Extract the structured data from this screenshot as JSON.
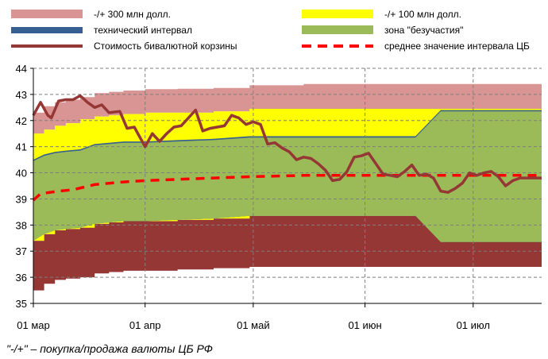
{
  "chart_data": {
    "type": "area",
    "title": "",
    "xlabel": "",
    "ylabel": "",
    "ylim": [
      35,
      44
    ],
    "xlim": [
      "2013-03-01",
      "2013-07-20"
    ],
    "y_ticks": [
      "35",
      "36",
      "37",
      "38",
      "39",
      "40",
      "41",
      "42",
      "43",
      "44"
    ],
    "x_ticks": [
      {
        "date": "2013-03-01",
        "label": "01 мар"
      },
      {
        "date": "2013-04-01",
        "label": "01 апр"
      },
      {
        "date": "2013-05-01",
        "label": "01 май"
      },
      {
        "date": "2013-06-01",
        "label": "01 июн"
      },
      {
        "date": "2013-07-01",
        "label": "01 июл"
      }
    ],
    "grid": "dashed",
    "legend_placement": "top",
    "legend": [
      {
        "key": "band300",
        "label": "-/+ 300 млн долл.",
        "kind": "box",
        "color_upper": "#d99594",
        "color_lower": "#953735"
      },
      {
        "key": "band100",
        "label": "-/+ 100 млн долл.",
        "kind": "box",
        "color": "#ffff00"
      },
      {
        "key": "tech",
        "label": "технический интервал",
        "kind": "thin",
        "color": "#376092"
      },
      {
        "key": "zone",
        "label": "зона \"безучастия\"",
        "kind": "box",
        "color": "#9bbb59"
      },
      {
        "key": "basket",
        "label": "Стоимость бивалютной корзины",
        "kind": "line",
        "color": "#953735"
      },
      {
        "key": "mid",
        "label": "среднее значение интервала ЦБ",
        "kind": "dash",
        "color": "#ff0000"
      }
    ],
    "series": [
      {
        "name": "-/+ 300 млн долл.",
        "kind": "band",
        "x": [
          "2013-03-01",
          "2013-03-04",
          "2013-03-07",
          "2013-03-10",
          "2013-03-14",
          "2013-03-18",
          "2013-03-22",
          "2013-03-26",
          "2013-04-01",
          "2013-04-10",
          "2013-04-20",
          "2013-04-30",
          "2013-05-15",
          "2013-06-01",
          "2013-06-15",
          "2013-06-22",
          "2013-07-20"
        ],
        "upper": [
          42.3,
          42.55,
          42.7,
          42.8,
          42.9,
          43.05,
          43.1,
          43.15,
          43.2,
          43.22,
          43.25,
          43.35,
          43.4,
          43.4,
          43.4,
          43.4,
          43.4
        ],
        "lower": [
          35.5,
          35.75,
          35.9,
          35.95,
          36.0,
          36.15,
          36.2,
          36.25,
          36.25,
          36.3,
          36.35,
          36.4,
          36.4,
          36.4,
          36.4,
          36.4,
          36.4
        ]
      },
      {
        "name": "-/+ 100 млн долл.",
        "kind": "band",
        "x": [
          "2013-03-01",
          "2013-03-04",
          "2013-03-07",
          "2013-03-10",
          "2013-03-14",
          "2013-03-18",
          "2013-03-22",
          "2013-03-26",
          "2013-04-01",
          "2013-04-10",
          "2013-04-20",
          "2013-04-30",
          "2013-05-15",
          "2013-06-01",
          "2013-06-15",
          "2013-06-22",
          "2013-07-20"
        ],
        "upper": [
          41.5,
          41.65,
          41.8,
          41.9,
          42.05,
          42.15,
          42.2,
          42.25,
          42.3,
          42.3,
          42.35,
          42.45,
          42.45,
          42.45,
          42.45,
          42.45,
          42.45
        ],
        "lower": [
          37.4,
          37.65,
          37.8,
          37.85,
          37.9,
          38.05,
          38.1,
          38.15,
          38.15,
          38.2,
          38.25,
          38.35,
          38.35,
          38.35,
          38.35,
          38.35,
          38.35
        ]
      },
      {
        "name": "технический интервал",
        "kind": "band",
        "x": [
          "2013-03-01",
          "2013-03-04",
          "2013-03-07",
          "2013-03-10",
          "2013-03-14",
          "2013-03-18",
          "2013-03-22",
          "2013-03-26",
          "2013-04-01",
          "2013-04-10",
          "2013-04-20",
          "2013-04-30",
          "2013-05-15",
          "2013-06-01",
          "2013-06-15",
          "2013-06-22",
          "2013-07-20"
        ],
        "upper": [
          40.5,
          40.7,
          40.8,
          40.85,
          40.9,
          41.1,
          41.15,
          41.2,
          41.2,
          41.25,
          41.3,
          41.4,
          41.4,
          41.4,
          41.4,
          42.4,
          42.4
        ],
        "lower": [
          37.4,
          37.65,
          37.8,
          37.85,
          37.9,
          38.05,
          38.1,
          38.15,
          38.15,
          38.2,
          38.25,
          38.35,
          38.35,
          38.35,
          38.35,
          37.35,
          37.35
        ]
      },
      {
        "name": "зона \"безучастия\"",
        "kind": "band",
        "x": [
          "2013-03-01",
          "2013-03-04",
          "2013-03-07",
          "2013-03-10",
          "2013-03-14",
          "2013-03-18",
          "2013-03-22",
          "2013-03-26",
          "2013-04-01",
          "2013-04-10",
          "2013-04-20",
          "2013-04-30",
          "2013-05-15",
          "2013-06-01",
          "2013-06-15",
          "2013-06-22",
          "2013-07-20"
        ],
        "upper": [
          40.45,
          40.65,
          40.75,
          40.8,
          40.85,
          41.05,
          41.1,
          41.15,
          41.15,
          41.2,
          41.25,
          41.35,
          41.35,
          41.35,
          41.35,
          42.35,
          42.35
        ],
        "lower": [
          37.4,
          37.65,
          37.8,
          37.85,
          37.9,
          38.05,
          38.1,
          38.15,
          38.15,
          38.2,
          38.25,
          38.35,
          38.35,
          38.35,
          38.35,
          37.35,
          37.35
        ]
      },
      {
        "name": "Стоимость бивалютной корзины",
        "kind": "line",
        "x": [
          "2013-03-01",
          "2013-03-03",
          "2013-03-05",
          "2013-03-06",
          "2013-03-08",
          "2013-03-10",
          "2013-03-12",
          "2013-03-14",
          "2013-03-16",
          "2013-03-18",
          "2013-03-20",
          "2013-03-22",
          "2013-03-25",
          "2013-03-27",
          "2013-03-29",
          "2013-04-01",
          "2013-04-03",
          "2013-04-05",
          "2013-04-07",
          "2013-04-09",
          "2013-04-11",
          "2013-04-13",
          "2013-04-15",
          "2013-04-17",
          "2013-04-19",
          "2013-04-21",
          "2013-04-23",
          "2013-04-25",
          "2013-04-27",
          "2013-04-29",
          "2013-05-01",
          "2013-05-03",
          "2013-05-05",
          "2013-05-07",
          "2013-05-09",
          "2013-05-11",
          "2013-05-13",
          "2013-05-15",
          "2013-05-17",
          "2013-05-19",
          "2013-05-21",
          "2013-05-23",
          "2013-05-25",
          "2013-05-27",
          "2013-05-29",
          "2013-05-31",
          "2013-06-02",
          "2013-06-04",
          "2013-06-06",
          "2013-06-08",
          "2013-06-10",
          "2013-06-12",
          "2013-06-14",
          "2013-06-16",
          "2013-06-18",
          "2013-06-20",
          "2013-06-22",
          "2013-06-24",
          "2013-06-26",
          "2013-06-28",
          "2013-06-30",
          "2013-07-02",
          "2013-07-04",
          "2013-07-06",
          "2013-07-08",
          "2013-07-10",
          "2013-07-12",
          "2013-07-14",
          "2013-07-16",
          "2013-07-18",
          "2013-07-20"
        ],
        "y": [
          42.2,
          42.7,
          42.2,
          42.1,
          42.75,
          42.8,
          42.8,
          42.95,
          42.7,
          42.5,
          42.6,
          42.3,
          42.35,
          41.7,
          41.75,
          41.0,
          41.5,
          41.2,
          41.5,
          41.75,
          41.8,
          42.1,
          42.4,
          41.6,
          41.7,
          41.75,
          41.8,
          42.2,
          42.1,
          41.85,
          41.95,
          41.85,
          41.1,
          41.15,
          40.95,
          40.8,
          40.5,
          40.6,
          40.55,
          40.35,
          40.1,
          39.7,
          39.75,
          40.05,
          40.6,
          40.65,
          40.75,
          40.35,
          39.95,
          39.9,
          39.85,
          40.05,
          40.3,
          39.9,
          39.95,
          39.8,
          39.3,
          39.25,
          39.4,
          39.6,
          40.0,
          39.9,
          40.0,
          40.05,
          39.85,
          39.5,
          39.7,
          39.8,
          39.8,
          39.8,
          39.8
        ]
      },
      {
        "name": "среднее значение интервала ЦБ",
        "kind": "dashed",
        "x": [
          "2013-03-01",
          "2013-03-03",
          "2013-03-08",
          "2013-03-12",
          "2013-03-18",
          "2013-03-22",
          "2013-03-26",
          "2013-04-01",
          "2013-04-10",
          "2013-04-20",
          "2013-04-30",
          "2013-05-15",
          "2013-06-01",
          "2013-06-15",
          "2013-06-22",
          "2013-07-20"
        ],
        "y": [
          38.95,
          39.2,
          39.3,
          39.35,
          39.55,
          39.6,
          39.65,
          39.7,
          39.75,
          39.8,
          39.85,
          39.9,
          39.9,
          39.9,
          39.9,
          39.9
        ]
      }
    ],
    "footnote": "\"-/+\" – покупка/продажа валюты ЦБ РФ"
  }
}
